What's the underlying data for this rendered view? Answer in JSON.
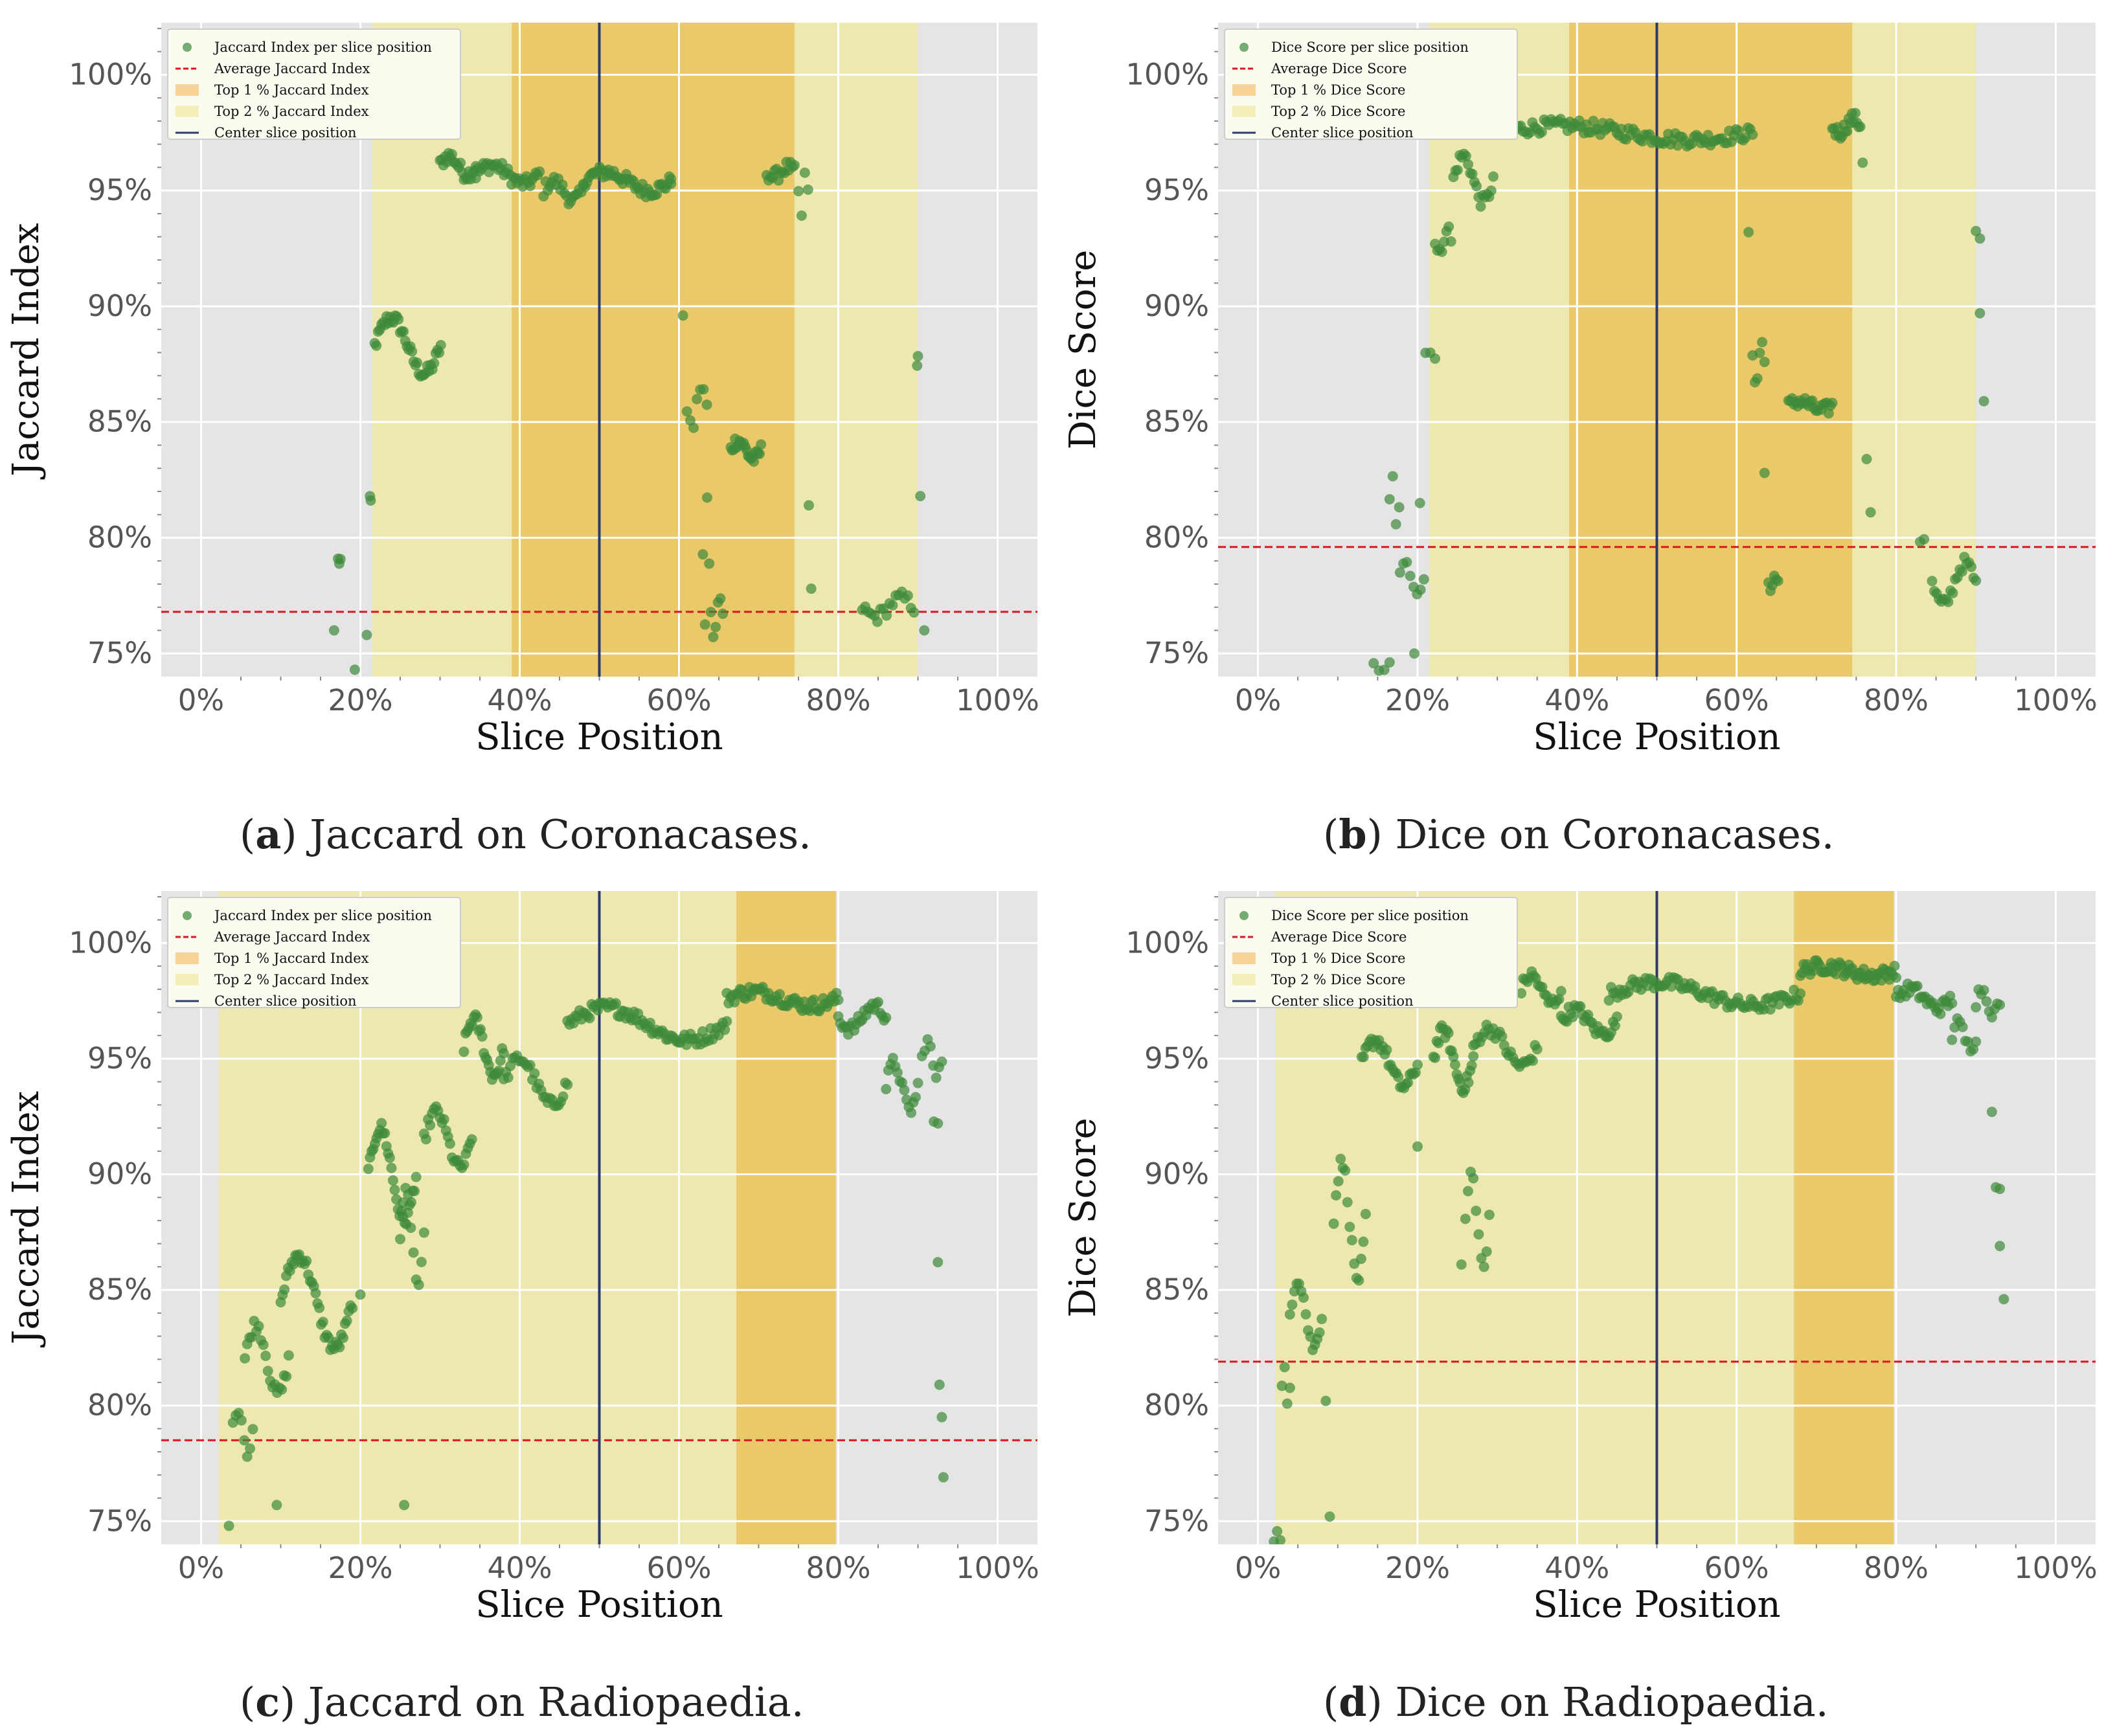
{
  "colors": {
    "background": "#e5e5e5",
    "grid": "#ffffff",
    "points": "#3d8a3a",
    "average_line": "#e0141e",
    "top1_band": "#e9c96a",
    "top2_band": "#ece8b0",
    "center_line": "#2b3a6b"
  },
  "legend_placement": "top-left",
  "chart_data": [
    {
      "type": "scatter",
      "caption": {
        "letter": "a",
        "text": ") Jaccard on Coronacases.",
        "open": "("
      },
      "xlabel": "Slice Position",
      "ylabel": "Jaccard Index",
      "xlim": [
        -0.05,
        1.05
      ],
      "ylim": [
        0.74,
        1.0225
      ],
      "xticks": [
        "0%",
        "20%",
        "40%",
        "60%",
        "80%",
        "100%"
      ],
      "yticks": [
        "75%",
        "80%",
        "85%",
        "90%",
        "95%",
        "100%"
      ],
      "grid": true,
      "legend": [
        "Jaccard Index per slice position",
        "Average Jaccard Index",
        "Top 1 % Jaccard Index",
        "Top 2 % Jaccard Index",
        "Center slice position"
      ],
      "average": 0.768,
      "center": 0.5,
      "top1_band": [
        0.39,
        0.745
      ],
      "top2_band": [
        0.215,
        0.9
      ],
      "series": [
        {
          "segments": [
            [
              0.167,
              0.76,
              0.024,
              0,
              0
            ],
            [
              0.172,
              0.79,
              0.003,
              0.004,
              3
            ],
            [
              0.193,
              0.743,
              0.001,
              0,
              0
            ],
            [
              0.208,
              0.758,
              0.001,
              0,
              0
            ],
            [
              0.212,
              0.815,
              0.001,
              0.01,
              2
            ],
            [
              0.218,
              0.883,
              0.083,
              0.012,
              40
            ],
            [
              0.3,
              0.961,
              0.045,
              0.004,
              22
            ],
            [
              0.345,
              0.957,
              0.08,
              0.004,
              35
            ],
            [
              0.43,
              0.95,
              0.05,
              0.004,
              20
            ],
            [
              0.48,
              0.954,
              0.11,
              0.004,
              50
            ],
            [
              0.59,
              0.955,
              0.01,
              0,
              0
            ],
            [
              0.605,
              0.896,
              0.001,
              0,
              0
            ],
            [
              0.61,
              0.857,
              0.025,
              -0.01,
              7
            ],
            [
              0.63,
              0.79,
              0.008,
              -0.03,
              4
            ],
            [
              0.64,
              0.766,
              0.015,
              -0.008,
              6
            ],
            [
              0.665,
              0.838,
              0.038,
              0.004,
              22
            ],
            [
              0.71,
              0.958,
              0.035,
              -0.002,
              15
            ],
            [
              0.75,
              0.948,
              0.012,
              -0.01,
              4
            ],
            [
              0.763,
              0.814,
              0.001,
              0,
              0
            ],
            [
              0.766,
              0.778,
              0.001,
              0,
              0
            ],
            [
              0.83,
              0.77,
              0.065,
              -0.004,
              18
            ],
            [
              0.899,
              0.876,
              0.001,
              -0.008,
              2
            ],
            [
              0.903,
              0.818,
              0.001,
              0,
              0
            ],
            [
              0.908,
              0.76,
              0.001,
              0,
              0
            ]
          ]
        }
      ]
    },
    {
      "type": "scatter",
      "caption": {
        "letter": "b",
        "text": ") Dice on Coronacases.",
        "open": "("
      },
      "xlabel": "Slice Position",
      "ylabel": "Dice Score",
      "xlim": [
        -0.05,
        1.05
      ],
      "ylim": [
        0.74,
        1.0225
      ],
      "xticks": [
        "0%",
        "20%",
        "40%",
        "60%",
        "80%",
        "100%"
      ],
      "yticks": [
        "75%",
        "80%",
        "85%",
        "90%",
        "95%",
        "100%"
      ],
      "grid": true,
      "legend": [
        "Dice Score per slice position",
        "Average Dice Score",
        "Top 1 % Dice Score",
        "Top 2 % Dice Score",
        "Center slice position"
      ],
      "average": 0.796,
      "center": 0.5,
      "top1_band": [
        0.39,
        0.745
      ],
      "top2_band": [
        0.215,
        0.9
      ],
      "series": [
        {
          "segments": [
            [
              0.145,
              0.744,
              0.02,
              0,
              4
            ],
            [
              0.165,
              0.815,
              0.012,
              0.012,
              4
            ],
            [
              0.178,
              0.783,
              0.03,
              0.005,
              8
            ],
            [
              0.196,
              0.75,
              0.001,
              0,
              0
            ],
            [
              0.203,
              0.815,
              0.001,
              0,
              0
            ],
            [
              0.21,
              0.88,
              0.012,
              0.008,
              3
            ],
            [
              0.222,
              0.928,
              0.02,
              -0.006,
              8
            ],
            [
              0.245,
              0.955,
              0.05,
              0.01,
              20
            ],
            [
              0.3,
              0.975,
              0.32,
              0.003,
              110
            ],
            [
              0.615,
              0.932,
              0.001,
              0,
              0
            ],
            [
              0.62,
              0.876,
              0.015,
              -0.008,
              6
            ],
            [
              0.635,
              0.828,
              0.001,
              0,
              0
            ],
            [
              0.64,
              0.781,
              0.012,
              -0.004,
              6
            ],
            [
              0.665,
              0.857,
              0.055,
              0.002,
              25
            ],
            [
              0.72,
              0.978,
              0.035,
              -0.003,
              18
            ],
            [
              0.758,
              0.962,
              0.001,
              0,
              0
            ],
            [
              0.763,
              0.834,
              0.001,
              0,
              0
            ],
            [
              0.768,
              0.811,
              0.001,
              0,
              0
            ],
            [
              0.83,
              0.8,
              0.005,
              0.002,
              2
            ],
            [
              0.845,
              0.78,
              0.055,
              -0.009,
              20
            ],
            [
              0.9,
              0.932,
              0.005,
              -0.004,
              2
            ],
            [
              0.905,
              0.897,
              0.001,
              0,
              0
            ],
            [
              0.91,
              0.859,
              0.001,
              0,
              0
            ]
          ]
        }
      ]
    },
    {
      "type": "scatter",
      "caption": {
        "letter": "c",
        "text": ") Jaccard on Radiopaedia.",
        "open": "("
      },
      "xlabel": "Slice Position",
      "ylabel": "Jaccard Index",
      "xlim": [
        -0.05,
        1.05
      ],
      "ylim": [
        0.74,
        1.0225
      ],
      "xticks": [
        "0%",
        "20%",
        "40%",
        "60%",
        "80%",
        "100%"
      ],
      "yticks": [
        "75%",
        "80%",
        "85%",
        "90%",
        "95%",
        "100%"
      ],
      "grid": true,
      "legend": [
        "Jaccard Index per slice position",
        "Average Jaccard Index",
        "Top 1 % Jaccard Index",
        "Top 2 % Jaccard Index",
        "Center slice position"
      ],
      "average": 0.785,
      "center": 0.5,
      "top1_band": [
        0.672,
        0.797
      ],
      "top2_band": [
        0.022,
        0.797
      ],
      "series": [
        {
          "segments": [
            [
              0.035,
              0.748,
              0.001,
              0,
              0
            ],
            [
              0.04,
              0.79,
              0.025,
              0.01,
              8
            ],
            [
              0.055,
              0.82,
              0.055,
              0.015,
              20
            ],
            [
              0.095,
              0.757,
              0.001,
              0,
              0
            ],
            [
              0.1,
              0.845,
              0.09,
              0.02,
              40
            ],
            [
              0.2,
              0.848,
              0.001,
              0,
              0
            ],
            [
              0.21,
              0.9,
              0.06,
              0.02,
              30
            ],
            [
              0.25,
              0.872,
              0.03,
              0.02,
              10
            ],
            [
              0.255,
              0.757,
              0.001,
              0,
              0
            ],
            [
              0.28,
              0.915,
              0.06,
              0.012,
              25
            ],
            [
              0.33,
              0.955,
              0.05,
              0.012,
              25
            ],
            [
              0.38,
              0.94,
              0.08,
              0.01,
              30
            ],
            [
              0.46,
              0.965,
              0.2,
              0.007,
              80
            ],
            [
              0.66,
              0.976,
              0.14,
              0.003,
              60
            ],
            [
              0.8,
              0.968,
              0.06,
              -0.005,
              25
            ],
            [
              0.86,
              0.938,
              0.04,
              0.01,
              15
            ],
            [
              0.905,
              0.95,
              0.025,
              0.008,
              8
            ],
            [
              0.92,
              0.924,
              0.005,
              0.008,
              2
            ],
            [
              0.925,
              0.862,
              0.001,
              0,
              0
            ],
            [
              0.927,
              0.809,
              0.001,
              0,
              0
            ],
            [
              0.93,
              0.795,
              0.001,
              0,
              0
            ],
            [
              0.932,
              0.769,
              0.001,
              0,
              0
            ]
          ]
        }
      ]
    },
    {
      "type": "scatter",
      "caption": {
        "letter": "d",
        "text": ") Dice on Radiopaedia.",
        "open": "("
      },
      "xlabel": "Slice Position",
      "ylabel": "Dice Score",
      "xlim": [
        -0.05,
        1.05
      ],
      "ylim": [
        0.74,
        1.0225
      ],
      "xticks": [
        "0%",
        "20%",
        "40%",
        "60%",
        "80%",
        "100%"
      ],
      "yticks": [
        "75%",
        "80%",
        "85%",
        "90%",
        "95%",
        "100%"
      ],
      "grid": true,
      "legend": [
        "Dice Score per slice position",
        "Average Dice Score",
        "Top 1 % Dice Score",
        "Top 2 % Dice Score",
        "Center slice position"
      ],
      "average": 0.819,
      "center": 0.5,
      "top1_band": [
        0.672,
        0.797
      ],
      "top2_band": [
        0.022,
        0.797
      ],
      "series": [
        {
          "segments": [
            [
              0.02,
              0.744,
              0.008,
              0.008,
              3
            ],
            [
              0.03,
              0.807,
              0.01,
              0.01,
              4
            ],
            [
              0.04,
              0.84,
              0.04,
              0.015,
              15
            ],
            [
              0.085,
              0.802,
              0.001,
              0,
              0
            ],
            [
              0.09,
              0.752,
              0.001,
              0,
              0
            ],
            [
              0.095,
              0.88,
              0.04,
              0.025,
              15
            ],
            [
              0.13,
              0.948,
              0.07,
              0.01,
              30
            ],
            [
              0.2,
              0.912,
              0.001,
              0,
              0
            ],
            [
              0.22,
              0.95,
              0.05,
              0.012,
              25
            ],
            [
              0.26,
              0.88,
              0.03,
              0.02,
              10
            ],
            [
              0.255,
              0.861,
              0.001,
              0,
              0
            ],
            [
              0.27,
              0.955,
              0.08,
              0.008,
              30
            ],
            [
              0.33,
              0.98,
              0.05,
              0.006,
              20
            ],
            [
              0.38,
              0.966,
              0.07,
              0.005,
              30
            ],
            [
              0.44,
              0.978,
              0.24,
              0.005,
              90
            ],
            [
              0.68,
              0.988,
              0.12,
              0.002,
              60
            ],
            [
              0.8,
              0.976,
              0.07,
              0.004,
              30
            ],
            [
              0.87,
              0.96,
              0.03,
              0.005,
              10
            ],
            [
              0.9,
              0.975,
              0.03,
              0.005,
              10
            ],
            [
              0.92,
              0.927,
              0.001,
              0,
              0
            ],
            [
              0.925,
              0.892,
              0.005,
              0.004,
              2
            ],
            [
              0.93,
              0.869,
              0.001,
              0,
              0
            ],
            [
              0.935,
              0.846,
              0.001,
              0,
              0
            ]
          ]
        }
      ]
    }
  ]
}
